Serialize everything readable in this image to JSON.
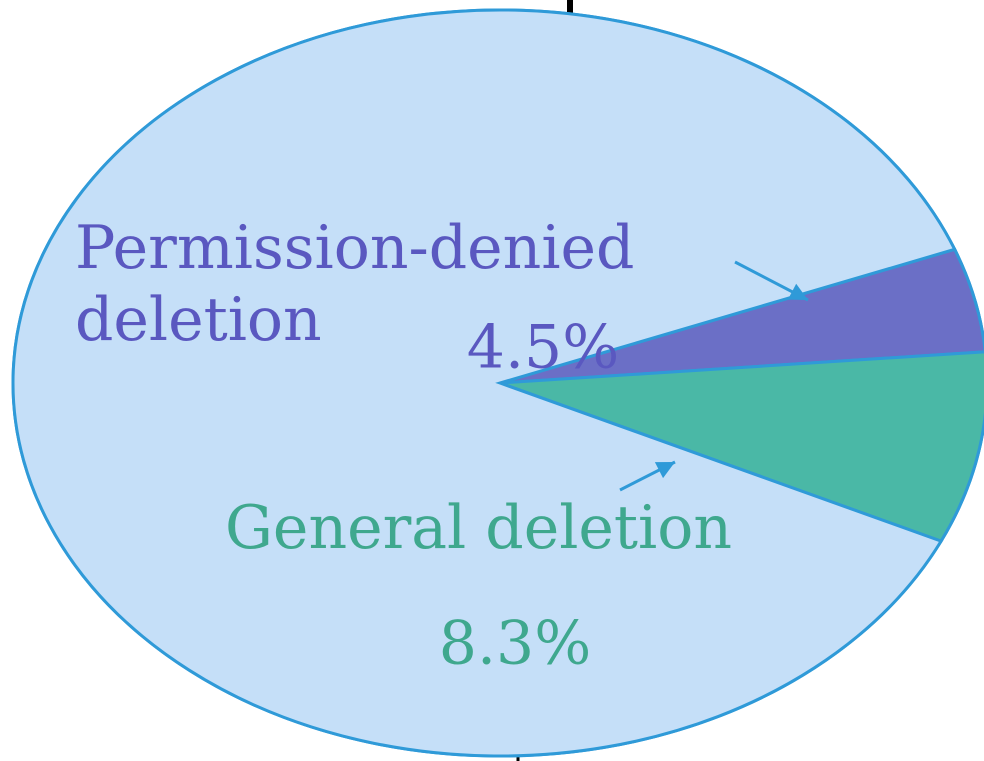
{
  "chart_data": {
    "type": "pie",
    "categories": [
      "Permission-denied deletion",
      "General deletion",
      null
    ],
    "values": [
      4.5,
      8.3,
      87.2
    ],
    "value_labels": [
      "4.5%",
      "8.3%",
      null
    ],
    "colors": [
      "#6b6fc6",
      "#4ab8a6",
      "#c5dff8"
    ],
    "label_colors": [
      "#5a58c0",
      "#3fa88e",
      null
    ]
  }
}
